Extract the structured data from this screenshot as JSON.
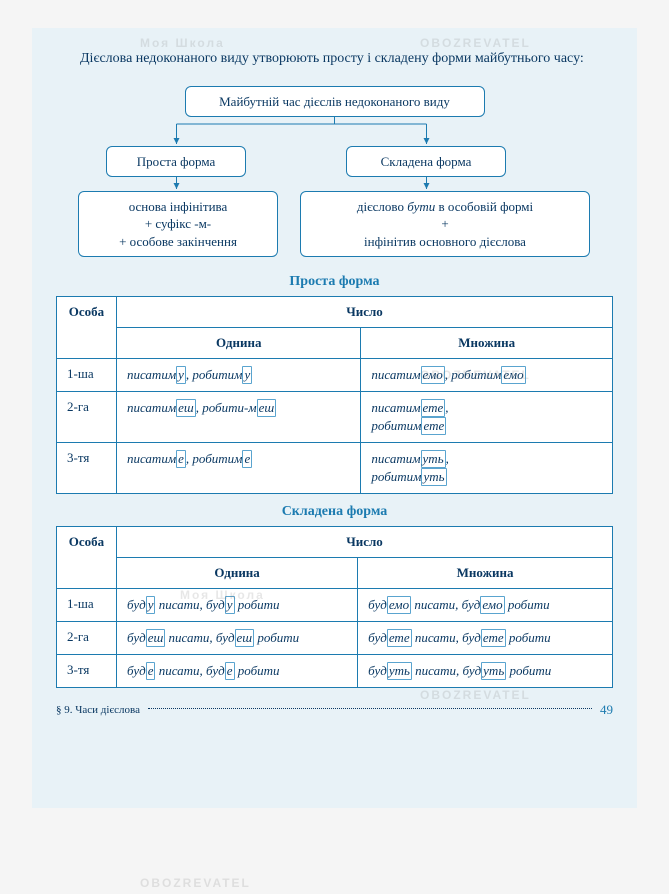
{
  "intro": "Дієслова недоконаного виду утворюють просту і складену форми майбутнього часу:",
  "diagram": {
    "top": "Майбутній час дієслів недоконаного виду",
    "left": "Проста форма",
    "right": "Складена форма",
    "bottomLeft": "основа інфінітива\n+ суфікс -м-\n+ особове закінчення",
    "bottomRightLine1": "дієслово ",
    "bottomRightEm": "бути",
    "bottomRightLine1b": " в особовій формі",
    "bottomRightPlus": "+",
    "bottomRightLine2": "інфінітив основного дієслова"
  },
  "table1": {
    "title": "Проста форма",
    "header": {
      "col1": "Особа",
      "colspan": "Число",
      "sub1": "Однина",
      "sub2": "Множина"
    },
    "rows": [
      {
        "person": "1-ша",
        "sg": [
          [
            "писатим",
            "у"
          ],
          ", ",
          [
            "робитим",
            "у"
          ]
        ],
        "pl": [
          [
            "писатим",
            "емо"
          ],
          ", ",
          [
            "робитим",
            "емо"
          ]
        ]
      },
      {
        "person": "2-га",
        "sg": [
          [
            "писатим",
            "еш"
          ],
          ", ",
          [
            "робити-м",
            "еш"
          ]
        ],
        "pl": [
          [
            "писатим",
            "ете"
          ],
          ",\n",
          [
            "робитим",
            "ете"
          ]
        ]
      },
      {
        "person": "3-тя",
        "sg": [
          [
            "писатим",
            "е"
          ],
          ", ",
          [
            "робитим",
            "е"
          ]
        ],
        "pl": [
          [
            "писатим",
            "уть"
          ],
          ",\n",
          [
            "робитим",
            "уть"
          ]
        ]
      }
    ]
  },
  "table2": {
    "title": "Складена форма",
    "header": {
      "col1": "Особа",
      "colspan": "Число",
      "sub1": "Однина",
      "sub2": "Множина"
    },
    "rows": [
      {
        "person": "1-ша",
        "sg": [
          [
            "буд",
            "у"
          ],
          " писати, ",
          [
            "буд",
            "у"
          ],
          " робити"
        ],
        "pl": [
          [
            "буд",
            "емо"
          ],
          " писати, ",
          [
            "буд",
            "емо"
          ],
          " робити"
        ]
      },
      {
        "person": "2-га",
        "sg": [
          [
            "буд",
            "еш"
          ],
          " писати, ",
          [
            "буд",
            "еш"
          ],
          " робити"
        ],
        "pl": [
          [
            "буд",
            "ете"
          ],
          " писати, ",
          [
            "буд",
            "ете"
          ],
          " робити"
        ]
      },
      {
        "person": "3-тя",
        "sg": [
          [
            "буд",
            "е"
          ],
          " писати, ",
          [
            "буд",
            "е"
          ],
          " робити"
        ],
        "pl": [
          [
            "буд",
            "уть"
          ],
          " писати, ",
          [
            "буд",
            "уть"
          ],
          " робити"
        ]
      }
    ]
  },
  "footer": {
    "section": "§ 9. Часи дієслова",
    "page": "49"
  },
  "colors": {
    "border": "#1c7bb0",
    "text": "#0a3862",
    "bg": "#e8f2f7",
    "hl": "#5aa4cf"
  },
  "watermarks": [
    "OBOZREVATEL",
    "Моя Школа"
  ]
}
